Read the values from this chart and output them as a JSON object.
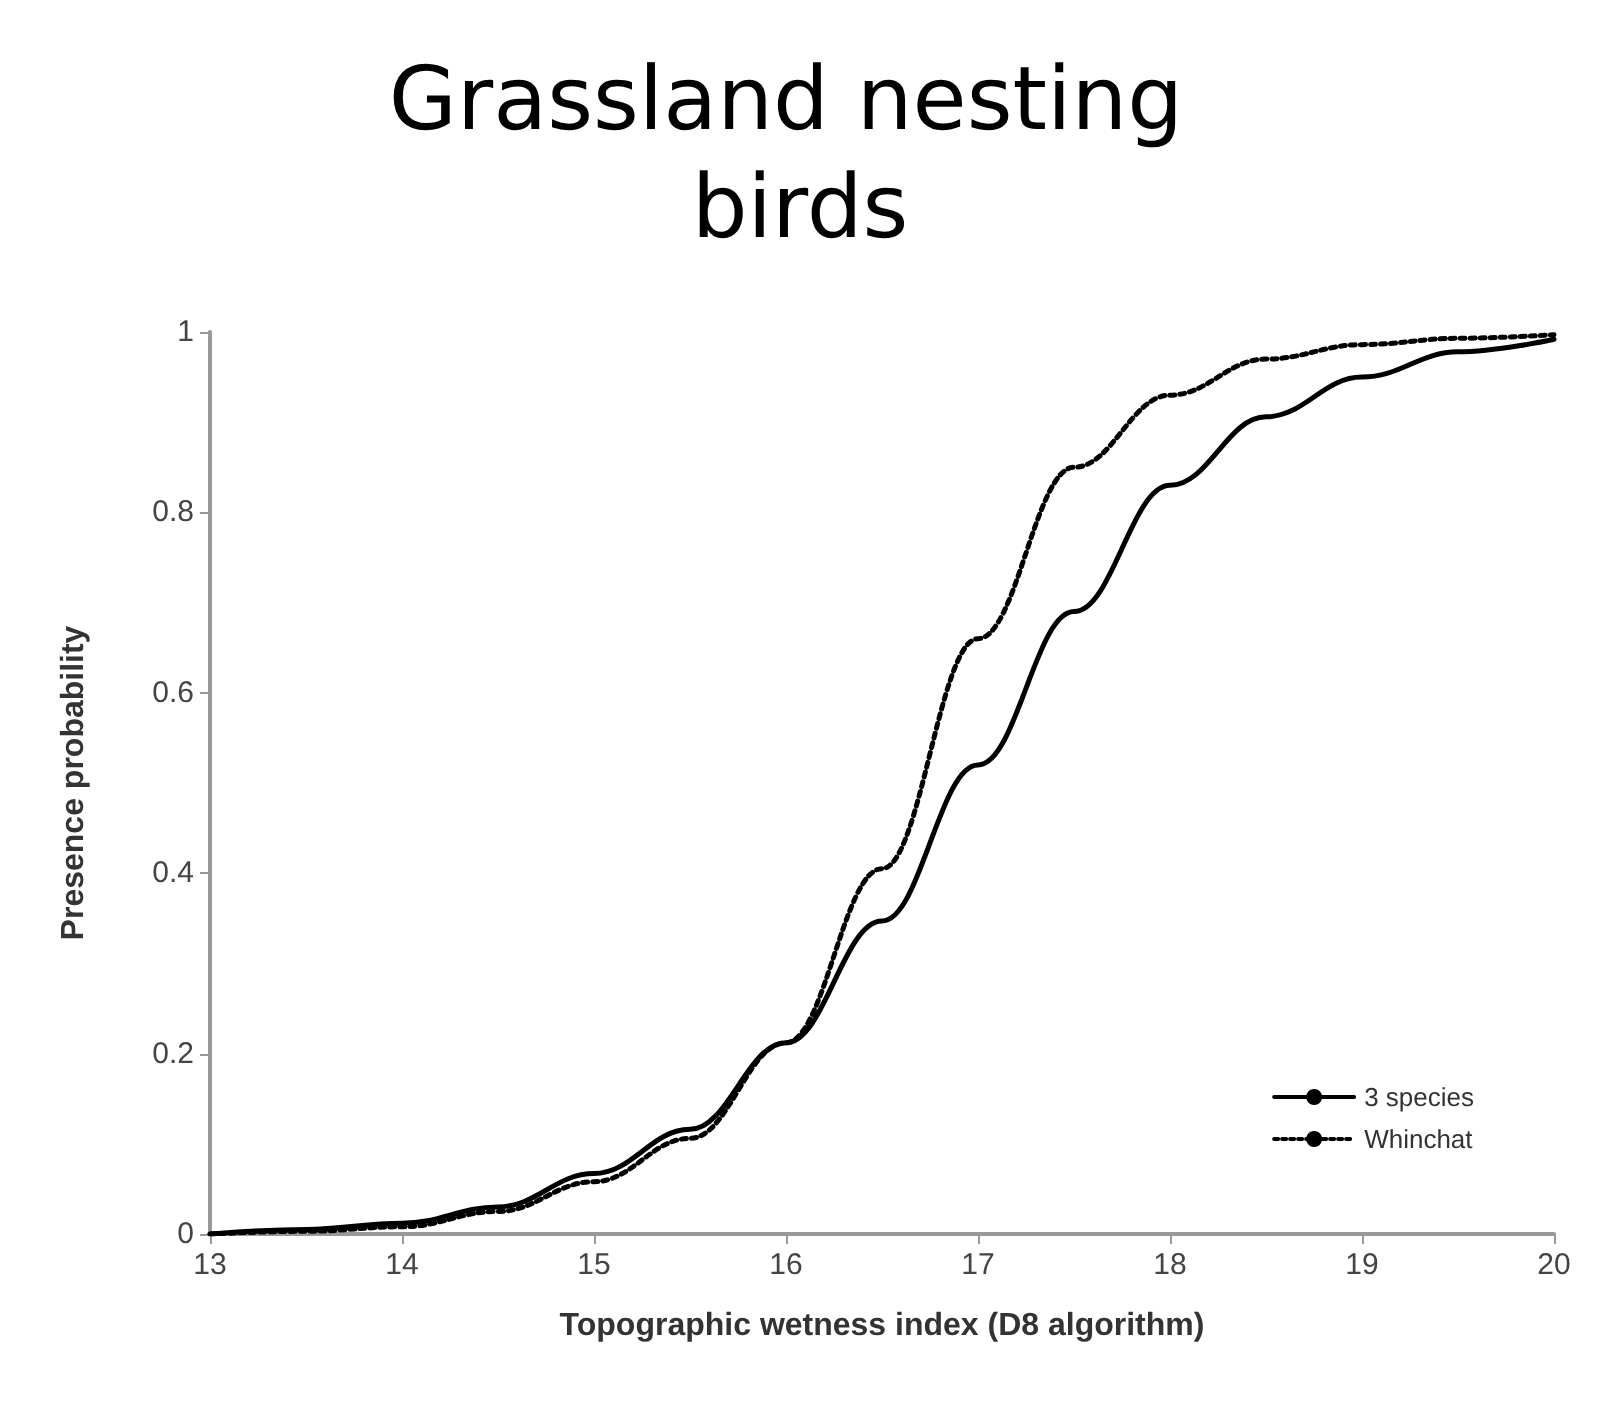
{
  "chart_data": {
    "type": "line",
    "title": "Grassland nesting birds",
    "xlabel": "Topographic wetness index (D8 algorithm)",
    "ylabel": "Presence probability",
    "x": [
      13,
      13.5,
      14,
      14.5,
      15,
      15.5,
      16,
      16.5,
      17,
      17.5,
      18,
      18.5,
      19,
      19.5,
      20
    ],
    "series": [
      {
        "name": "3 species",
        "color": "#000000",
        "line_style": "solid",
        "values": [
          0,
          0.005,
          0.012,
          0.03,
          0.067,
          0.116,
          0.212,
          0.347,
          0.52,
          0.69,
          0.83,
          0.906,
          0.95,
          0.978,
          0.992
        ]
      },
      {
        "name": "Whinchat",
        "color": "#000000",
        "line_style": "dotted",
        "values": [
          0,
          0.003,
          0.008,
          0.025,
          0.058,
          0.106,
          0.212,
          0.405,
          0.66,
          0.85,
          0.93,
          0.97,
          0.986,
          0.993,
          0.997
        ]
      }
    ],
    "xlim": [
      13,
      20
    ],
    "xticks": [
      13,
      14,
      15,
      16,
      17,
      18,
      19,
      20
    ],
    "ylim": [
      0,
      1
    ],
    "yticks": [
      0,
      0.2,
      0.4,
      0.6,
      0.8,
      1
    ],
    "grid": false,
    "legend": "bottom right",
    "marker": "none"
  }
}
